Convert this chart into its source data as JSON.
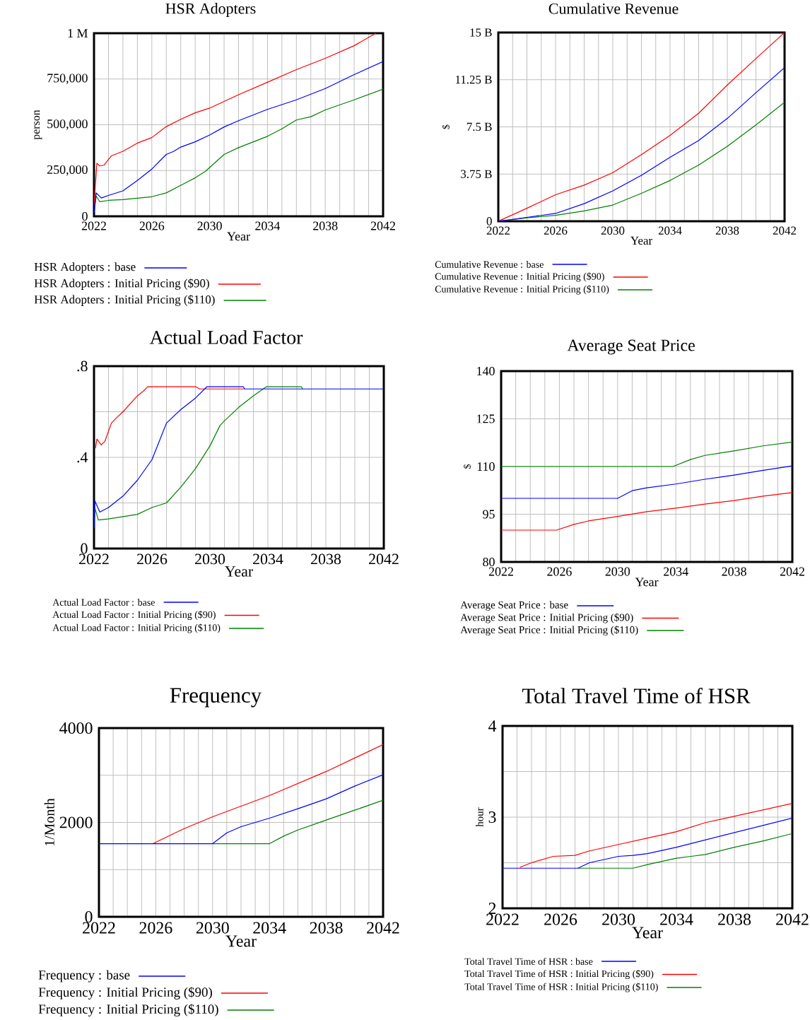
{
  "chart_data": [
    {
      "type": "line",
      "title": "HSR Adopters",
      "xlabel": "Year",
      "ylabel": "person",
      "xlim": [
        2022,
        2042
      ],
      "ylim": [
        0,
        1000000
      ],
      "xticks": [
        2022,
        {
          "value": 2023,
          "label": null
        },
        {
          "value": 2024,
          "label": null
        },
        {
          "value": 2025,
          "label": null
        },
        2026,
        {
          "value": 2027,
          "label": null
        },
        {
          "value": 2028,
          "label": null
        },
        {
          "value": 2029,
          "label": null
        },
        2030,
        {
          "value": 2031,
          "label": null
        },
        {
          "value": 2032,
          "label": null
        },
        {
          "value": 2033,
          "label": null
        },
        2034,
        {
          "value": 2035,
          "label": null
        },
        {
          "value": 2036,
          "label": null
        },
        {
          "value": 2037,
          "label": null
        },
        2038,
        {
          "value": 2039,
          "label": null
        },
        {
          "value": 2040,
          "label": null
        },
        {
          "value": 2041,
          "label": null
        },
        2042
      ],
      "yticks": [
        0,
        {
          "value": 250000,
          "label": "250,000"
        },
        {
          "value": 500000,
          "label": "500,000"
        },
        {
          "value": 750000,
          "label": "750,000"
        },
        {
          "value": 1000000,
          "label": "1 M"
        }
      ],
      "grid": true,
      "legend": "bottom",
      "series": [
        {
          "name": "HSR Adopters : base",
          "color": "#0000ff",
          "x": [
            2022,
            2022.15,
            2022.5,
            2023,
            2024,
            2025,
            2026,
            2027,
            2027.5,
            2028,
            2029,
            2030,
            2031,
            2032,
            2034,
            2036,
            2038,
            2040,
            2042
          ],
          "values": [
            20000,
            128000,
            100000,
            114000,
            139000,
            196000,
            258000,
            338000,
            354000,
            378000,
            407000,
            444000,
            488000,
            522000,
            584000,
            636000,
            698000,
            774000,
            845000
          ]
        },
        {
          "name": "HSR Adopters : Initial Pricing ($90)",
          "color": "#ff0000",
          "x": [
            2022,
            2022.2,
            2022.4,
            2022.7,
            2023.2,
            2024,
            2025,
            2026,
            2027,
            2028,
            2029,
            2030,
            2032,
            2034,
            2036,
            2038,
            2040,
            2041.5
          ],
          "values": [
            60000,
            290000,
            275000,
            280000,
            330000,
            355000,
            400000,
            430000,
            490000,
            530000,
            565000,
            591000,
            664000,
            732000,
            801000,
            863000,
            932000,
            1000000
          ]
        },
        {
          "name": "HSR Adopters : Initial Pricing ($110)",
          "color": "#008000",
          "x": [
            2022,
            2022.15,
            2022.4,
            2023,
            2024,
            2025,
            2026,
            2027,
            2028,
            2029,
            2029.7,
            2031,
            2032,
            2034,
            2035,
            2036,
            2037,
            2038,
            2040,
            2042
          ],
          "values": [
            20000,
            110000,
            80000,
            87000,
            91000,
            99000,
            107000,
            128000,
            169000,
            210000,
            245000,
            338000,
            375000,
            437000,
            478000,
            526000,
            544000,
            581000,
            636000,
            695000
          ]
        }
      ]
    },
    {
      "type": "line",
      "title": "Cumulative Revenue",
      "xlabel": "Year",
      "ylabel": "$",
      "xlim": [
        2022,
        2042
      ],
      "ylim": [
        0,
        15
      ],
      "xticks": [
        2022,
        {
          "value": 2023,
          "label": null
        },
        {
          "value": 2024,
          "label": null
        },
        {
          "value": 2025,
          "label": null
        },
        2026,
        {
          "value": 2027,
          "label": null
        },
        {
          "value": 2028,
          "label": null
        },
        {
          "value": 2029,
          "label": null
        },
        2030,
        {
          "value": 2031,
          "label": null
        },
        {
          "value": 2032,
          "label": null
        },
        {
          "value": 2033,
          "label": null
        },
        2034,
        {
          "value": 2035,
          "label": null
        },
        {
          "value": 2036,
          "label": null
        },
        {
          "value": 2037,
          "label": null
        },
        2038,
        {
          "value": 2039,
          "label": null
        },
        {
          "value": 2040,
          "label": null
        },
        {
          "value": 2041,
          "label": null
        },
        2042
      ],
      "yticks": [
        0,
        {
          "value": 3.75,
          "label": "3.75 B"
        },
        {
          "value": 7.5,
          "label": "7.5 B"
        },
        {
          "value": 11.25,
          "label": "11.25 B"
        },
        {
          "value": 15,
          "label": "15 B"
        }
      ],
      "grid": true,
      "legend": "bottom",
      "series": [
        {
          "name": "Cumulative Revenue : base",
          "color": "#0000ff",
          "x": [
            2022,
            2024,
            2026,
            2028,
            2030,
            2032,
            2034,
            2036,
            2038,
            2040,
            2042
          ],
          "values": [
            0,
            0.31,
            0.62,
            1.4,
            2.42,
            3.65,
            5.09,
            6.42,
            8.17,
            10.22,
            12.21
          ]
        },
        {
          "name": "Cumulative Revenue : Initial Pricing ($90)",
          "color": "#ff0000",
          "x": [
            2022,
            2024,
            2026,
            2028,
            2030,
            2032,
            2034,
            2036,
            2038,
            2040,
            2042
          ],
          "values": [
            0,
            1.03,
            2.11,
            2.87,
            3.86,
            5.29,
            6.83,
            8.58,
            10.83,
            12.93,
            15
          ]
        },
        {
          "name": "Cumulative Revenue : Initial Pricing ($110)",
          "color": "#008000",
          "x": [
            2022,
            2024,
            2026,
            2028,
            2030,
            2032,
            2034,
            2036,
            2038,
            2040,
            2042
          ],
          "values": [
            0,
            0.27,
            0.47,
            0.82,
            1.29,
            2.22,
            3.24,
            4.47,
            5.95,
            7.65,
            9.46
          ]
        }
      ]
    },
    {
      "type": "line",
      "title": "Actual Load Factor",
      "xlabel": "Year",
      "xlim": [
        2022,
        2042
      ],
      "ylim": [
        0,
        0.8
      ],
      "xticks": [
        2022,
        {
          "value": 2023,
          "label": null
        },
        {
          "value": 2024,
          "label": null
        },
        {
          "value": 2025,
          "label": null
        },
        2026,
        {
          "value": 2027,
          "label": null
        },
        {
          "value": 2028,
          "label": null
        },
        {
          "value": 2029,
          "label": null
        },
        2030,
        {
          "value": 2031,
          "label": null
        },
        {
          "value": 2032,
          "label": null
        },
        {
          "value": 2033,
          "label": null
        },
        2034,
        {
          "value": 2035,
          "label": null
        },
        {
          "value": 2036,
          "label": null
        },
        {
          "value": 2037,
          "label": null
        },
        2038,
        {
          "value": 2039,
          "label": null
        },
        {
          "value": 2040,
          "label": null
        },
        {
          "value": 2041,
          "label": null
        },
        2042
      ],
      "yticks": [
        0,
        {
          "value": 0.2,
          "label": null
        },
        {
          "value": 0.4,
          "label": ".4"
        },
        {
          "value": 0.6,
          "label": null
        },
        {
          "value": 0.8,
          "label": ".8"
        }
      ],
      "grid": true,
      "legend": "bottom",
      "series": [
        {
          "name": "Actual Load Factor : base",
          "color": "#0000ff",
          "x": [
            2022,
            2022.05,
            2022.4,
            2023,
            2024,
            2025,
            2026,
            2026.5,
            2027,
            2028,
            2029,
            2029.8,
            2032.3,
            2032.4,
            2042
          ],
          "values": [
            0.09,
            0.21,
            0.16,
            0.18,
            0.23,
            0.3,
            0.39,
            0.47,
            0.55,
            0.61,
            0.66,
            0.71,
            0.71,
            0.7,
            0.7
          ]
        },
        {
          "name": "Actual Load Factor : Initial Pricing ($90)",
          "color": "#ff0000",
          "x": [
            2022.1,
            2022.2,
            2022.5,
            2022.75,
            2023.2,
            2023.5,
            2024,
            2025,
            2025.4,
            2025.7,
            2029,
            2029.3,
            2032.4
          ],
          "values": [
            0.44,
            0.48,
            0.455,
            0.47,
            0.55,
            0.57,
            0.6,
            0.67,
            0.69,
            0.71,
            0.71,
            0.7,
            0.7
          ]
        },
        {
          "name": "Actual Load Factor : Initial Pricing ($110)",
          "color": "#008000",
          "x": [
            2022,
            2022.05,
            2022.3,
            2023,
            2024,
            2025,
            2026,
            2027,
            2028,
            2029,
            2030,
            2030.7,
            2031,
            2032,
            2033,
            2033.9,
            2036.3,
            2036.4
          ],
          "values": [
            0.09,
            0.18,
            0.125,
            0.13,
            0.14,
            0.15,
            0.18,
            0.2,
            0.27,
            0.35,
            0.45,
            0.54,
            0.56,
            0.62,
            0.67,
            0.71,
            0.71,
            0.7
          ]
        }
      ]
    },
    {
      "type": "line",
      "title": "Average Seat Price",
      "xlabel": "Year",
      "ylabel": "$",
      "xlim": [
        2022,
        2042
      ],
      "ylim": [
        80,
        140
      ],
      "xticks": [
        2022,
        {
          "value": 2023,
          "label": null
        },
        {
          "value": 2024,
          "label": null
        },
        {
          "value": 2025,
          "label": null
        },
        2026,
        {
          "value": 2027,
          "label": null
        },
        {
          "value": 2028,
          "label": null
        },
        {
          "value": 2029,
          "label": null
        },
        2030,
        {
          "value": 2031,
          "label": null
        },
        {
          "value": 2032,
          "label": null
        },
        {
          "value": 2033,
          "label": null
        },
        2034,
        {
          "value": 2035,
          "label": null
        },
        {
          "value": 2036,
          "label": null
        },
        {
          "value": 2037,
          "label": null
        },
        2038,
        {
          "value": 2039,
          "label": null
        },
        {
          "value": 2040,
          "label": null
        },
        {
          "value": 2041,
          "label": null
        },
        2042
      ],
      "yticks": [
        80,
        95,
        110,
        125,
        140
      ],
      "grid": true,
      "legend": "bottom",
      "series": [
        {
          "name": "Average Seat Price : base",
          "color": "#0000ff",
          "x": [
            2022,
            2030,
            2031,
            2032,
            2034,
            2036,
            2038,
            2040,
            2042
          ],
          "values": [
            100,
            100,
            102.4,
            103.3,
            104.5,
            106,
            107.3,
            108.8,
            110.2
          ]
        },
        {
          "name": "Average Seat Price : Initial Pricing ($90)",
          "color": "#ff0000",
          "x": [
            2022,
            2025.8,
            2027,
            2028,
            2030,
            2032,
            2034,
            2036,
            2038,
            2040,
            2042
          ],
          "values": [
            90,
            90,
            91.8,
            92.9,
            94.3,
            95.8,
            96.9,
            98.2,
            99.3,
            100.7,
            101.8
          ]
        },
        {
          "name": "Average Seat Price : Initial Pricing ($110)",
          "color": "#008000",
          "x": [
            2022,
            2033.8,
            2035,
            2036,
            2038,
            2040,
            2042
          ],
          "values": [
            110,
            110,
            112.2,
            113.5,
            114.9,
            116.5,
            117.7
          ]
        }
      ]
    },
    {
      "type": "line",
      "title": "Frequency",
      "xlabel": "Year",
      "ylabel": "1/Month",
      "xlim": [
        2022,
        2042
      ],
      "ylim": [
        0,
        4000
      ],
      "xticks": [
        2022,
        {
          "value": 2023,
          "label": null
        },
        {
          "value": 2024,
          "label": null
        },
        {
          "value": 2025,
          "label": null
        },
        2026,
        {
          "value": 2027,
          "label": null
        },
        {
          "value": 2028,
          "label": null
        },
        {
          "value": 2029,
          "label": null
        },
        2030,
        {
          "value": 2031,
          "label": null
        },
        {
          "value": 2032,
          "label": null
        },
        {
          "value": 2033,
          "label": null
        },
        2034,
        {
          "value": 2035,
          "label": null
        },
        {
          "value": 2036,
          "label": null
        },
        {
          "value": 2037,
          "label": null
        },
        2038,
        {
          "value": 2039,
          "label": null
        },
        {
          "value": 2040,
          "label": null
        },
        {
          "value": 2041,
          "label": null
        },
        2042
      ],
      "yticks": [
        0,
        {
          "value": 1000,
          "label": null
        },
        2000,
        {
          "value": 3000,
          "label": null
        },
        4000
      ],
      "grid": true,
      "legend": "bottom",
      "series": [
        {
          "name": "Frequency : base",
          "color": "#0000ff",
          "x": [
            2022,
            2030,
            2031,
            2032,
            2034,
            2036,
            2038,
            2040,
            2042
          ],
          "values": [
            1550,
            1550,
            1780,
            1910,
            2090,
            2290,
            2500,
            2770,
            3010
          ]
        },
        {
          "name": "Frequency : Initial Pricing ($90)",
          "color": "#ff0000",
          "x": [
            2025.8,
            2028,
            2030,
            2034,
            2038,
            2042
          ],
          "values": [
            1550,
            1870,
            2120,
            2570,
            3080,
            3650
          ]
        },
        {
          "name": "Frequency : Initial Pricing ($110)",
          "color": "#008000",
          "x": [
            2030,
            2034,
            2035,
            2036,
            2038,
            2040,
            2042
          ],
          "values": [
            1550,
            1550,
            1710,
            1840,
            2050,
            2260,
            2470
          ]
        }
      ]
    },
    {
      "type": "line",
      "title": "Total Travel Time of HSR",
      "xlabel": "Year",
      "ylabel": "hour",
      "xlim": [
        2022,
        2042
      ],
      "ylim": [
        2,
        4
      ],
      "xticks": [
        2022,
        {
          "value": 2023,
          "label": null
        },
        {
          "value": 2024,
          "label": null
        },
        {
          "value": 2025,
          "label": null
        },
        2026,
        {
          "value": 2027,
          "label": null
        },
        {
          "value": 2028,
          "label": null
        },
        {
          "value": 2029,
          "label": null
        },
        2030,
        {
          "value": 2031,
          "label": null
        },
        {
          "value": 2032,
          "label": null
        },
        {
          "value": 2033,
          "label": null
        },
        2034,
        {
          "value": 2035,
          "label": null
        },
        {
          "value": 2036,
          "label": null
        },
        {
          "value": 2037,
          "label": null
        },
        2038,
        {
          "value": 2039,
          "label": null
        },
        {
          "value": 2040,
          "label": null
        },
        {
          "value": 2041,
          "label": null
        },
        2042
      ],
      "yticks": [
        2,
        {
          "value": 2.5,
          "label": null
        },
        3,
        {
          "value": 3.5,
          "label": null
        },
        4
      ],
      "grid": true,
      "legend": "bottom",
      "series": [
        {
          "name": "Total Travel Time of HSR : base",
          "color": "#0000ff",
          "x": [
            2022,
            2027.2,
            2028,
            2030,
            2031,
            2032,
            2034,
            2036,
            2038,
            2040,
            2042
          ],
          "values": [
            2.44,
            2.44,
            2.5,
            2.57,
            2.58,
            2.6,
            2.67,
            2.75,
            2.83,
            2.91,
            2.99
          ]
        },
        {
          "name": "Total Travel Time of HSR : Initial Pricing ($90)",
          "color": "#ff0000",
          "x": [
            2023.2,
            2024,
            2025.5,
            2027,
            2028,
            2030,
            2032,
            2034,
            2036,
            2038,
            2040,
            2042
          ],
          "values": [
            2.45,
            2.5,
            2.57,
            2.58,
            2.63,
            2.7,
            2.77,
            2.84,
            2.94,
            3.01,
            3.08,
            3.15
          ]
        },
        {
          "name": "Total Travel Time of HSR : Initial Pricing ($110)",
          "color": "#008000",
          "x": [
            2027.2,
            2031,
            2032,
            2034,
            2035,
            2036,
            2038,
            2040,
            2042
          ],
          "values": [
            2.44,
            2.44,
            2.48,
            2.55,
            2.57,
            2.59,
            2.67,
            2.74,
            2.82
          ]
        }
      ]
    }
  ]
}
